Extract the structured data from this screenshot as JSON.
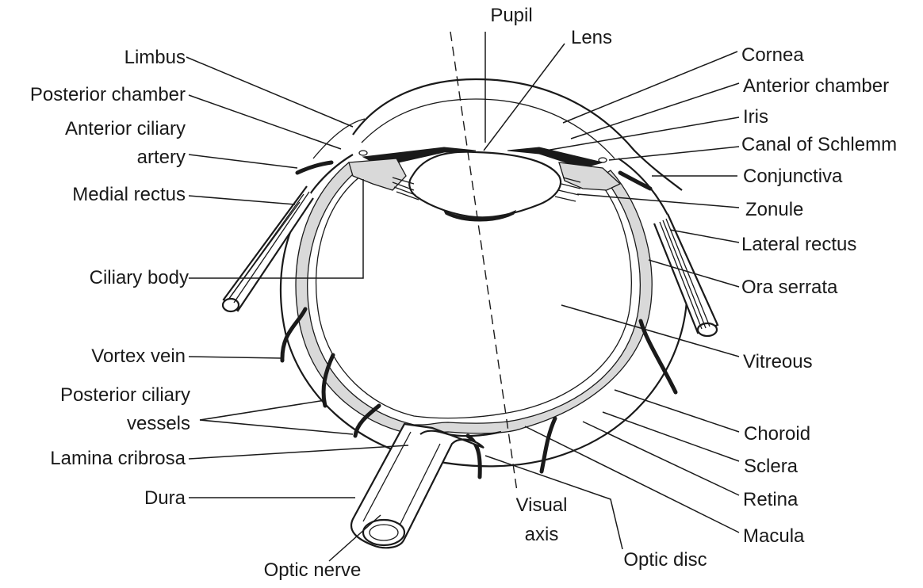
{
  "labels": {
    "pupil": "Pupil",
    "lens": "Lens",
    "limbus": "Limbus",
    "posterior_chamber": "Posterior chamber",
    "anterior_ciliary_artery_line1": "Anterior ciliary",
    "anterior_ciliary_artery_line2": "artery",
    "medial_rectus": "Medial rectus",
    "ciliary_body": "Ciliary body",
    "vortex_vein": "Vortex vein",
    "posterior_ciliary_vessels_line1": "Posterior ciliary",
    "posterior_ciliary_vessels_line2": "vessels",
    "lamina_cribrosa": "Lamina cribrosa",
    "dura": "Dura",
    "optic_nerve": "Optic nerve",
    "visual_axis_line1": "Visual",
    "visual_axis_line2": "axis",
    "optic_disc": "Optic disc",
    "cornea": "Cornea",
    "anterior_chamber": "Anterior chamber",
    "iris": "Iris",
    "canal_of_schlemm": "Canal of Schlemm",
    "conjunctiva": "Conjunctiva",
    "zonule": "Zonule",
    "lateral_rectus": "Lateral rectus",
    "ora_serrata": "Ora serrata",
    "vitreous": "Vitreous",
    "choroid": "Choroid",
    "sclera": "Sclera",
    "retina": "Retina",
    "macula": "Macula"
  }
}
